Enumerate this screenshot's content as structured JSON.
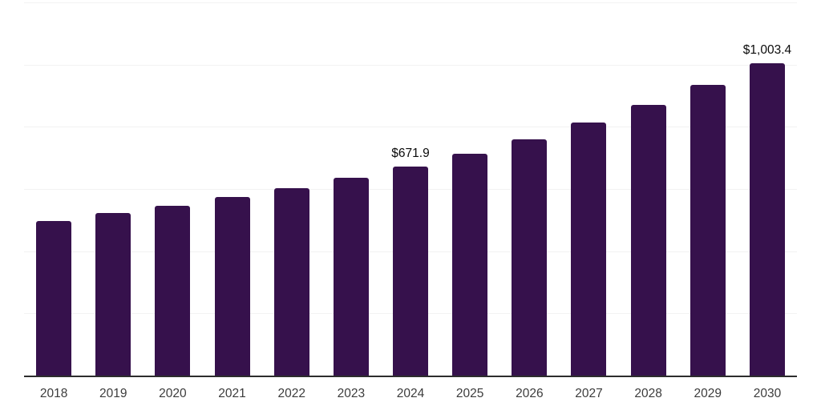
{
  "chart_data": {
    "type": "bar",
    "categories": [
      "2018",
      "2019",
      "2020",
      "2021",
      "2022",
      "2023",
      "2024",
      "2025",
      "2026",
      "2027",
      "2028",
      "2029",
      "2030"
    ],
    "values": [
      497.0,
      521.9,
      545.8,
      575.0,
      601.5,
      635.9,
      671.9,
      714.1,
      760.4,
      813.5,
      870.2,
      933.9,
      1003.4
    ],
    "value_labels": {
      "2024": "$671.9",
      "2030": "$1,003.4"
    },
    "ylim": [
      0,
      1200
    ],
    "gridline_values": [
      200,
      400,
      600,
      800,
      1000,
      1200
    ],
    "grid": "horizontal",
    "legend": "none",
    "colors": {
      "bar": "#36114C",
      "gridline": "#f2f2f2",
      "axis": "#2d2d2d",
      "tick_label": "#3c3c3c",
      "value_label": "#0b0b0b",
      "background": "#ffffff"
    }
  }
}
